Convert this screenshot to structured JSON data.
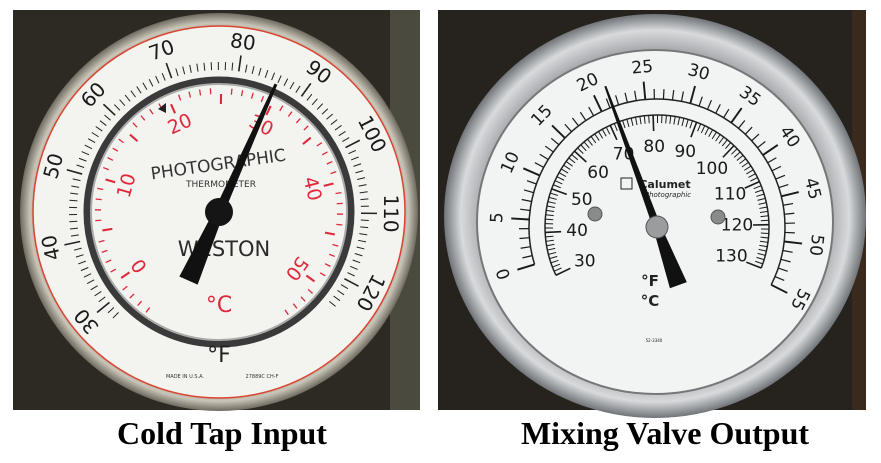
{
  "captions": {
    "left": "Cold Tap Input",
    "right": "Mixing Valve Output"
  },
  "colors": {
    "background": "#2a2620",
    "face": "#f4f4f2",
    "ink": "#1a1a1a",
    "red_scale": "#e0283a",
    "rim": "#a8a49a"
  },
  "left_gauge": {
    "brand": "WESTON",
    "title": "PHOTOGRAPHIC",
    "subtitle": "THERMOMETER",
    "unit_inner": "°C",
    "unit_outer": "°F",
    "made_in": "MADE IN U.S.A.",
    "model": "27889C CH-F",
    "fahrenheit_scale": {
      "min": 30,
      "max": 120,
      "label_step": 10
    },
    "celsius_scale": {
      "min": 0,
      "max": 50,
      "label_step": 10
    },
    "needle_reading_c": 30
  },
  "right_gauge": {
    "brand": "Calumet",
    "brand_sub": "Photographic",
    "unit_f": "°F",
    "unit_c": "°C",
    "model": "52-3340",
    "celsius_scale": {
      "min": 0,
      "max": 55,
      "label_step": 5
    },
    "fahrenheit_scale": {
      "min": 30,
      "max": 130,
      "label_step": 10
    },
    "needle_reading_f": 72
  }
}
